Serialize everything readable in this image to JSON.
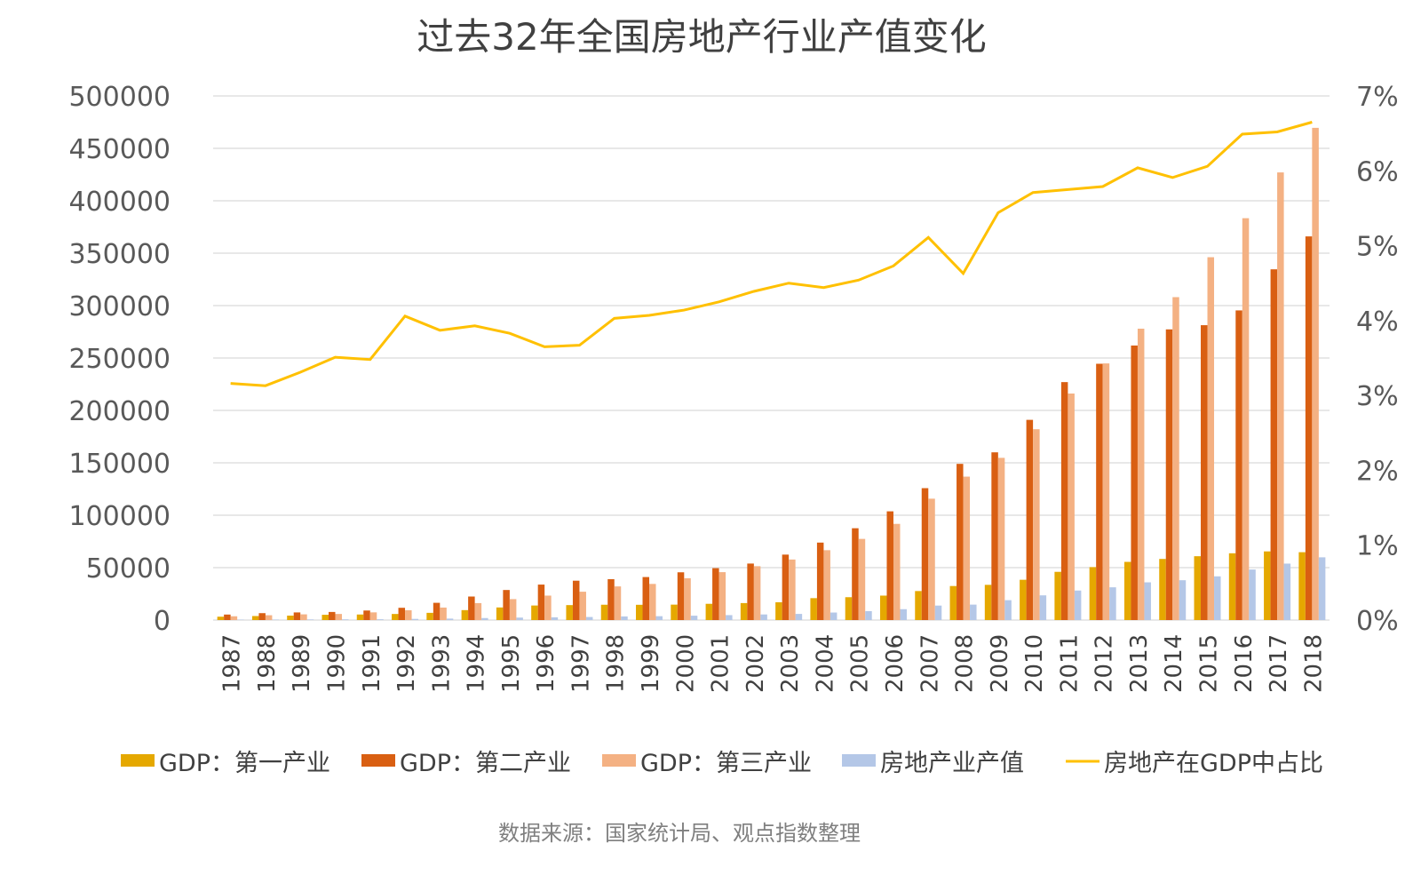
{
  "chart_data": {
    "type": "bar+line",
    "title": "过去32年全国房地产行业产值变化",
    "source": "数据来源：国家统计局、观点指数整理",
    "categories": [
      "1987",
      "1988",
      "1989",
      "1990",
      "1991",
      "1992",
      "1993",
      "1994",
      "1995",
      "1996",
      "1997",
      "1998",
      "1999",
      "2000",
      "2001",
      "2002",
      "2003",
      "2004",
      "2005",
      "2006",
      "2007",
      "2008",
      "2009",
      "2010",
      "2011",
      "2012",
      "2013",
      "2014",
      "2015",
      "2016",
      "2017",
      "2018"
    ],
    "y_left": {
      "min": 0,
      "max": 500000,
      "ticks": [
        "0",
        "50000",
        "100000",
        "150000",
        "200000",
        "250000",
        "300000",
        "350000",
        "400000",
        "450000",
        "500000"
      ]
    },
    "y_right": {
      "min": 0,
      "max": 7,
      "ticks": [
        "0%",
        "1%",
        "2%",
        "3%",
        "4%",
        "5%",
        "6%",
        "7%"
      ]
    },
    "grid": true,
    "legend_position": "bottom",
    "series": [
      {
        "name": "GDP：第一产业",
        "type": "bar",
        "axis": "left",
        "color": "#E5A800",
        "values": [
          3204,
          3831,
          4228,
          5017,
          5289,
          5800,
          6887,
          9471,
          12020,
          13878,
          14265,
          14618,
          14549,
          14717,
          15502,
          16190,
          16970,
          20904,
          21806,
          23317,
          27674,
          32464,
          33584,
          38431,
          46000,
          50500,
          55500,
          58300,
          60900,
          63700,
          65500,
          64734
        ]
      },
      {
        "name": "GDP：第二产业",
        "type": "bar",
        "axis": "left",
        "color": "#D95F12",
        "values": [
          5252,
          6587,
          7278,
          7717,
          9102,
          11700,
          16454,
          22445,
          28679,
          33835,
          37543,
          39004,
          41034,
          45556,
          49512,
          53897,
          62436,
          73904,
          87598,
          103720,
          125831,
          149003,
          160000,
          191000,
          227000,
          244500,
          261900,
          277300,
          281300,
          295400,
          334600,
          366001
        ]
      },
      {
        "name": "GDP：第三产业",
        "type": "bar",
        "axis": "left",
        "color": "#F4B183",
        "values": [
          3607,
          4590,
          5448,
          5814,
          7337,
          9357,
          11916,
          16180,
          19978,
          23326,
          27038,
          32104,
          34476,
          39898,
          45701,
          51372,
          57756,
          66650,
          77430,
          91762,
          115787,
          136827,
          154748,
          182039,
          216099,
          244822,
          277959,
          308059,
          346150,
          383374,
          427032,
          469575
        ]
      },
      {
        "name": "房地产业产值",
        "type": "bar",
        "axis": "left",
        "color": "#B4C7E7",
        "values": [
          376,
          448,
          569,
          662,
          768,
          1101,
          1380,
          1909,
          2354,
          2617,
          2922,
          3435,
          3681,
          4149,
          4706,
          5347,
          5860,
          7174,
          8517,
          10370,
          13809,
          14739,
          18966,
          23569,
          28168,
          31248,
          35988,
          38000,
          41701,
          48190,
          53850,
          59846
        ]
      },
      {
        "name": "房地产在GDP中占比",
        "type": "line",
        "axis": "right",
        "unit": "%",
        "color": "#FFC000",
        "values": [
          3.16,
          3.13,
          3.31,
          3.51,
          3.48,
          4.06,
          3.87,
          3.93,
          3.83,
          3.65,
          3.67,
          4.03,
          4.07,
          4.14,
          4.25,
          4.39,
          4.5,
          4.44,
          4.54,
          4.73,
          5.11,
          4.63,
          5.44,
          5.71,
          5.75,
          5.79,
          6.04,
          5.91,
          6.06,
          6.49,
          6.52,
          6.65
        ]
      }
    ]
  }
}
